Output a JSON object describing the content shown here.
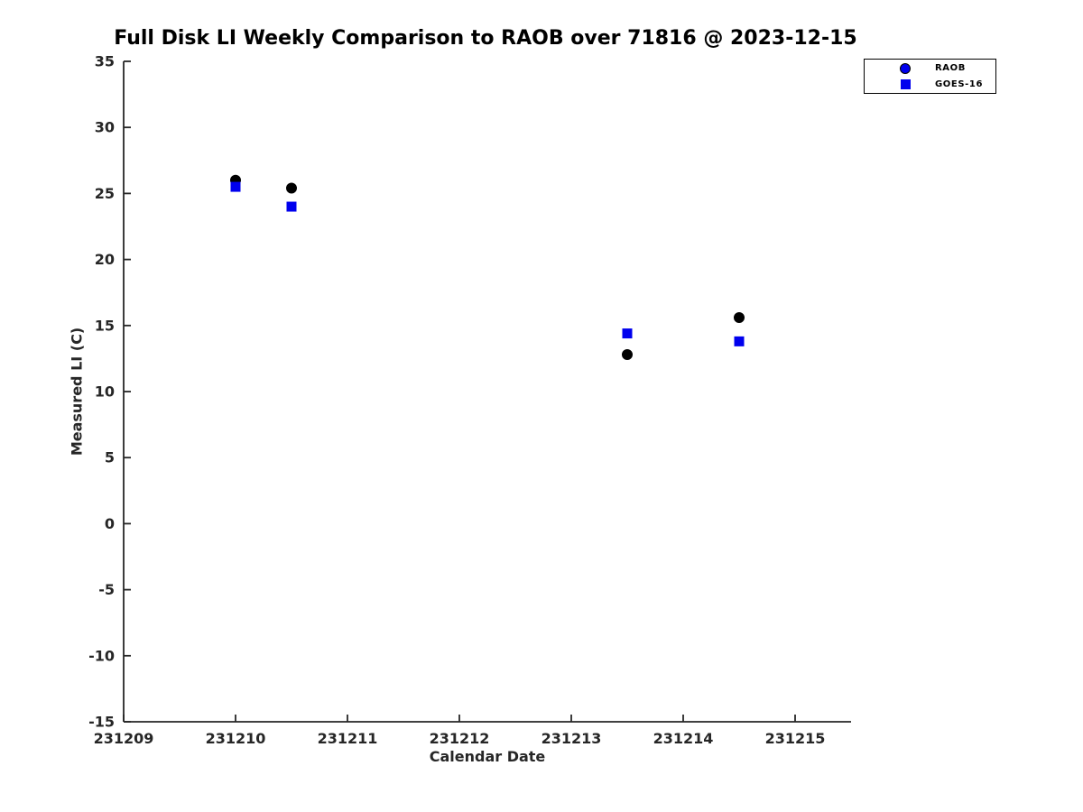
{
  "window": {
    "background": "#ffffff"
  },
  "chart_data": {
    "type": "scatter",
    "title": "Full Disk LI Weekly Comparison to RAOB over 71816 @ 2023-12-15",
    "xlabel": "Calendar Date",
    "ylabel": "Measured LI (C)",
    "xlim": [
      231209,
      231215.5
    ],
    "ylim": [
      -15,
      35
    ],
    "xticks": [
      231209,
      231210,
      231211,
      231212,
      231213,
      231214,
      231215
    ],
    "yticks": [
      35,
      30,
      25,
      20,
      15,
      10,
      5,
      0,
      -5,
      -10,
      -15
    ],
    "grid": false,
    "box": false,
    "tick_direction": "in",
    "axis_color": "#262626",
    "legend_position": "top-right",
    "series": [
      {
        "name": "RAOB",
        "marker": "circle",
        "marker_color": "#000000",
        "legend_marker_color": "#0000ee",
        "x": [
          231210.0,
          231210.5,
          231213.5,
          231214.5
        ],
        "y": [
          26.0,
          25.4,
          12.8,
          15.6
        ]
      },
      {
        "name": "GOES-16",
        "marker": "square",
        "marker_color": "#0000ee",
        "legend_marker_color": "#0000ee",
        "x": [
          231210.0,
          231210.5,
          231213.5,
          231214.5
        ],
        "y": [
          25.5,
          24.0,
          14.4,
          13.8
        ]
      }
    ]
  }
}
